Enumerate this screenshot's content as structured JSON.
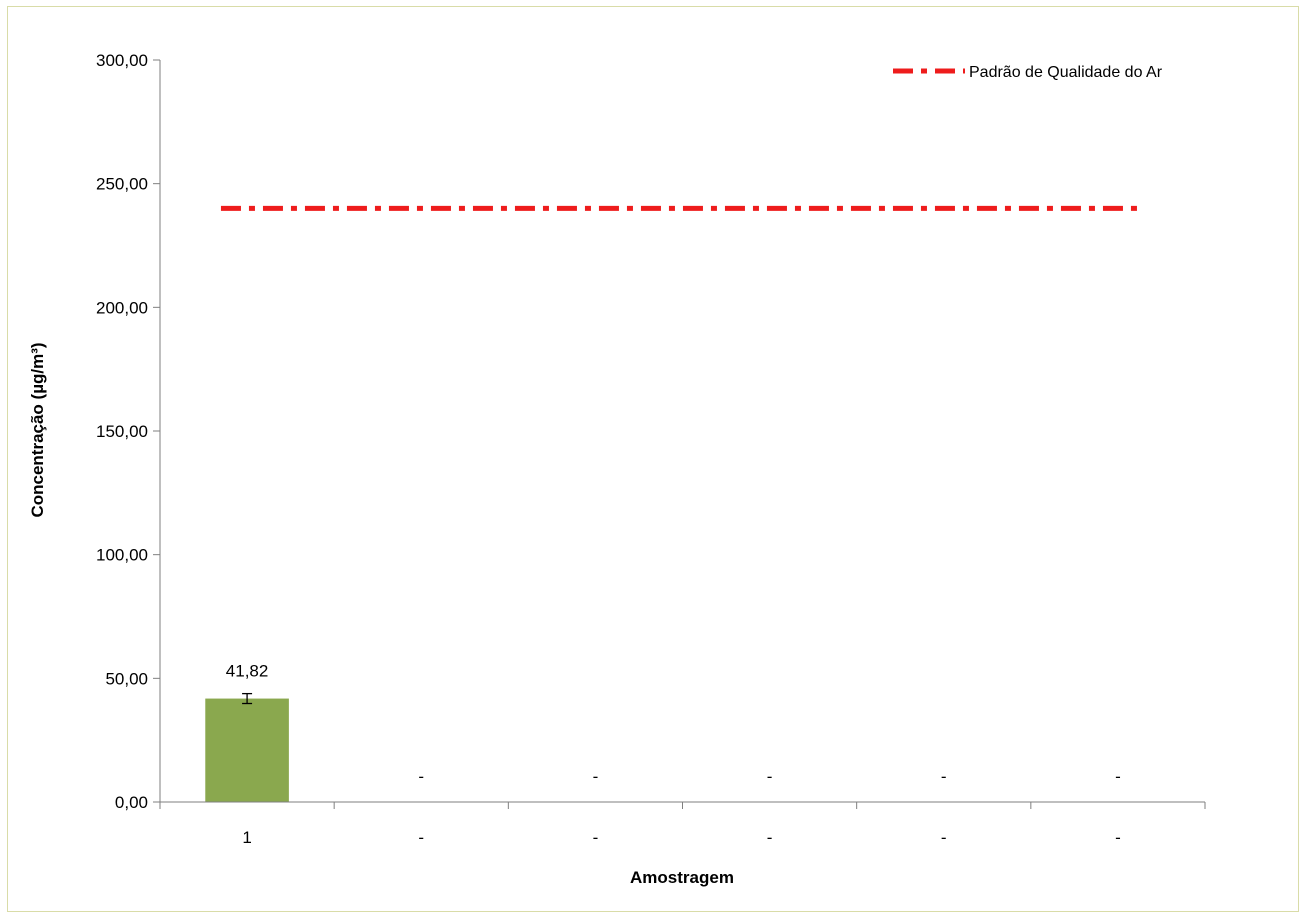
{
  "chart_data": {
    "type": "bar",
    "title": "",
    "xlabel": "Amostragem",
    "ylabel": "Concentração (µg/m³)",
    "categories": [
      "1",
      "-",
      "-",
      "-",
      "-",
      "-"
    ],
    "series": [
      {
        "values": [
          41.82,
          null,
          null,
          null,
          null,
          null
        ],
        "value_labels": [
          "41,82",
          "-",
          "-",
          "-",
          "-",
          "-"
        ],
        "error_bars": [
          2.0,
          null,
          null,
          null,
          null,
          null
        ],
        "color": "#8aa84e"
      }
    ],
    "reference_line": {
      "name": "Padrão de Qualidade do Ar",
      "value": 240,
      "style": "dash-dot",
      "color": "#ee1c1c"
    },
    "ylim": [
      0,
      300
    ],
    "yticks": [
      "0,00",
      "50,00",
      "100,00",
      "150,00",
      "200,00",
      "250,00",
      "300,00"
    ],
    "legend_position": "top-right",
    "grid": false
  }
}
